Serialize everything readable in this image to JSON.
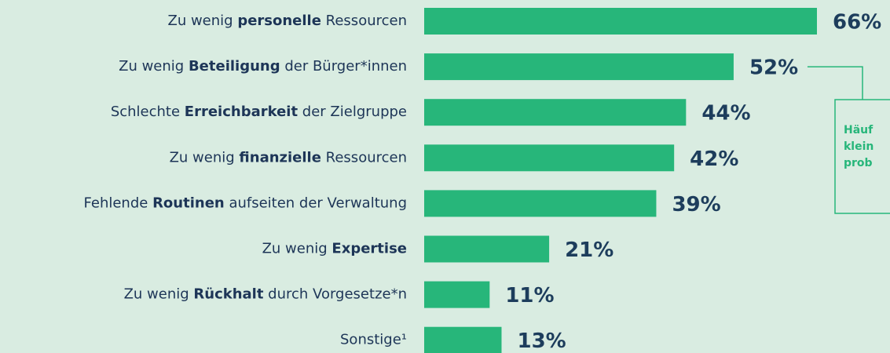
{
  "chart_data": {
    "type": "bar",
    "orientation": "horizontal",
    "categories": [
      [
        {
          "text": "Zu wenig ",
          "bold": false
        },
        {
          "text": "personelle",
          "bold": true
        },
        {
          "text": " Ressourcen",
          "bold": false
        }
      ],
      [
        {
          "text": "Zu wenig ",
          "bold": false
        },
        {
          "text": "Beteiligung",
          "bold": true
        },
        {
          "text": " der Bürger*innen",
          "bold": false
        }
      ],
      [
        {
          "text": "Schlechte ",
          "bold": false
        },
        {
          "text": "Erreichbarkeit",
          "bold": true
        },
        {
          "text": " der Zielgruppe",
          "bold": false
        }
      ],
      [
        {
          "text": "Zu wenig ",
          "bold": false
        },
        {
          "text": "finanzielle",
          "bold": true
        },
        {
          "text": " Ressourcen",
          "bold": false
        }
      ],
      [
        {
          "text": "Fehlende ",
          "bold": false
        },
        {
          "text": "Routinen",
          "bold": true
        },
        {
          "text": " aufseiten der Verwaltung",
          "bold": false
        }
      ],
      [
        {
          "text": "Zu wenig ",
          "bold": false
        },
        {
          "text": "Expertise",
          "bold": true
        }
      ],
      [
        {
          "text": "Zu wenig ",
          "bold": false
        },
        {
          "text": "Rückhalt",
          "bold": true
        },
        {
          "text": " durch Vorgesetze*n",
          "bold": false
        }
      ],
      [
        {
          "text": "Sonstige¹",
          "bold": false
        }
      ]
    ],
    "values": [
      66,
      52,
      44,
      42,
      39,
      21,
      11,
      13
    ],
    "value_labels": [
      "66%",
      "52%",
      "44%",
      "42%",
      "39%",
      "21%",
      "11%",
      "13%"
    ],
    "color": "#27b67a",
    "annotation": {
      "lines": [
        "Häuf",
        "klein",
        "prob"
      ],
      "target": 1
    }
  }
}
